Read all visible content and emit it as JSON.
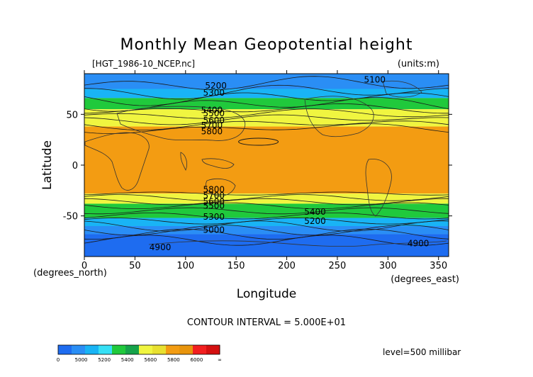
{
  "chart_data": {
    "type": "heatmap",
    "title": "Monthly Mean Geopotential height",
    "subtitle_left": "[HGT_1986-10_NCEP.nc]",
    "subtitle_right": "(units:m)",
    "xlabel": "Longitude",
    "ylabel": "Latitude",
    "x_unit_label": "(degrees_east)",
    "y_unit_label": "(degrees_north)",
    "xlim": [
      0,
      360
    ],
    "ylim": [
      -90,
      90
    ],
    "x_ticks": [
      0,
      50,
      100,
      150,
      200,
      250,
      300,
      350
    ],
    "y_ticks": [
      -50,
      0,
      50
    ],
    "contour_interval_text": "CONTOUR INTERVAL = 5.000E+01",
    "level_text": "level=500 millibar",
    "colorbar": {
      "labels": [
        "0",
        "5000",
        "5200",
        "5400",
        "5600",
        "5800",
        "6000",
        "∞"
      ],
      "colors": [
        "#1e6cf0",
        "#2a8ef5",
        "#19b4f5",
        "#36e0f5",
        "#20c93c",
        "#16a34a",
        "#f0f540",
        "#e8e030",
        "#f39c12",
        "#e8940c",
        "#f21f1f",
        "#d41010"
      ]
    },
    "bands": [
      {
        "lat_from": 90,
        "lat_to": 75,
        "value": 5150,
        "color": "#2a8ef5"
      },
      {
        "lat_from": 75,
        "lat_to": 66,
        "value": 5350,
        "color": "#19b4f5"
      },
      {
        "lat_from": 66,
        "lat_to": 55,
        "value": 5500,
        "color": "#20c93c"
      },
      {
        "lat_from": 55,
        "lat_to": 38,
        "value": 5750,
        "color": "#f0f540"
      },
      {
        "lat_from": 38,
        "lat_to": -28,
        "value": 5850,
        "color": "#f39c12"
      },
      {
        "lat_from": -28,
        "lat_to": -38,
        "value": 5750,
        "color": "#f0f540"
      },
      {
        "lat_from": -38,
        "lat_to": -52,
        "value": 5500,
        "color": "#20c93c"
      },
      {
        "lat_from": -52,
        "lat_to": -60,
        "value": 5350,
        "color": "#19b4f5"
      },
      {
        "lat_from": -60,
        "lat_to": -68,
        "value": 5150,
        "color": "#2a8ef5"
      },
      {
        "lat_from": -68,
        "lat_to": -90,
        "value": 4950,
        "color": "#1e6cf0"
      }
    ],
    "contour_labels": [
      {
        "text": "5200",
        "lon": 130,
        "lat": 78
      },
      {
        "text": "5300",
        "lon": 128,
        "lat": 71
      },
      {
        "text": "5400",
        "lon": 126,
        "lat": 54
      },
      {
        "text": "5500",
        "lon": 128,
        "lat": 51
      },
      {
        "text": "5600",
        "lon": 128,
        "lat": 44
      },
      {
        "text": "5700",
        "lon": 126,
        "lat": 39
      },
      {
        "text": "5800",
        "lon": 126,
        "lat": 33
      },
      {
        "text": "5100",
        "lon": 287,
        "lat": 84
      },
      {
        "text": "5800",
        "lon": 128,
        "lat": -24
      },
      {
        "text": "5700",
        "lon": 128,
        "lat": -30
      },
      {
        "text": "5600",
        "lon": 128,
        "lat": -36
      },
      {
        "text": "5500",
        "lon": 128,
        "lat": -40
      },
      {
        "text": "5400",
        "lon": 228,
        "lat": -46
      },
      {
        "text": "5300",
        "lon": 128,
        "lat": -51
      },
      {
        "text": "5200",
        "lon": 228,
        "lat": -55
      },
      {
        "text": "5000",
        "lon": 128,
        "lat": -64
      },
      {
        "text": "4900",
        "lon": 75,
        "lat": -81
      },
      {
        "text": "4900",
        "lon": 330,
        "lat": -77
      }
    ]
  }
}
